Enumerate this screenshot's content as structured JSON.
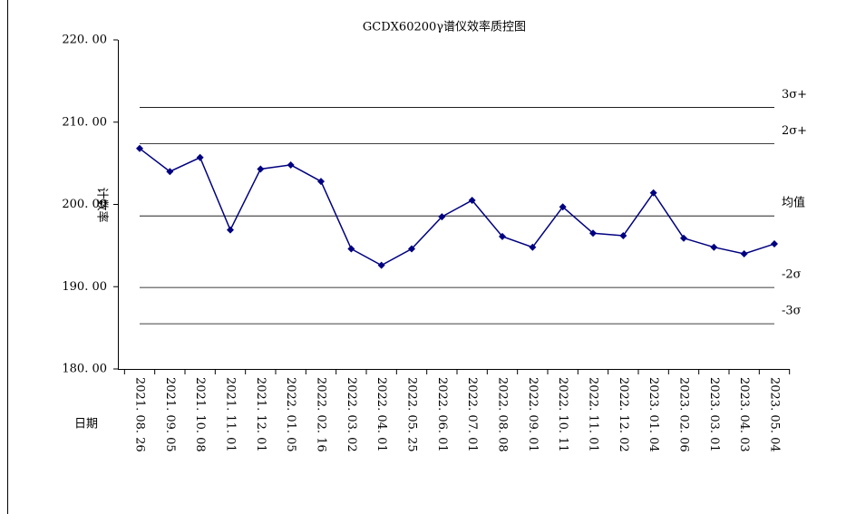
{
  "chart_data": {
    "type": "line",
    "title": "GCDX60200γ谱仪效率质控图",
    "x_label": "日期",
    "y_label": "计数率",
    "categories": [
      "2021. 08. 26",
      "2021. 09. 05",
      "2021. 10. 08",
      "2021. 11. 01",
      "2021. 12. 01",
      "2022. 01. 05",
      "2022. 02. 16",
      "2022. 03. 02",
      "2022. 04. 01",
      "2022. 05. 25",
      "2022. 06. 01",
      "2022. 07. 01",
      "2022. 08. 08",
      "2022. 09. 01",
      "2022. 10. 11",
      "2022. 11. 01",
      "2022. 12. 02",
      "2023. 01. 04",
      "2023. 02. 06",
      "2023. 03. 01",
      "2023. 04. 03",
      "2023. 05. 04"
    ],
    "series": [
      {
        "color": "#000080",
        "values": [
          206.8,
          204.0,
          205.7,
          196.9,
          204.3,
          204.8,
          202.8,
          194.6,
          192.6,
          194.6,
          198.5,
          200.5,
          196.1,
          194.8,
          199.7,
          196.5,
          196.2,
          201.4,
          195.9,
          194.8,
          194.0,
          195.2
        ]
      }
    ],
    "control_lines": [
      {
        "name": "3σ+",
        "value": 211.8
      },
      {
        "name": "2σ+",
        "value": 207.4
      },
      {
        "name": "均值",
        "value": 198.6
      },
      {
        "name": "-2σ",
        "value": 189.9
      },
      {
        "name": "-3σ",
        "value": 185.5
      }
    ],
    "ylim": [
      180,
      220
    ],
    "yticks": [
      {
        "value": 180,
        "label": "180. 00"
      },
      {
        "value": 190,
        "label": "190. 00"
      },
      {
        "value": 200,
        "label": "200. 00"
      },
      {
        "value": 210,
        "label": "210. 00"
      },
      {
        "value": 220,
        "label": "220. 00"
      }
    ]
  }
}
